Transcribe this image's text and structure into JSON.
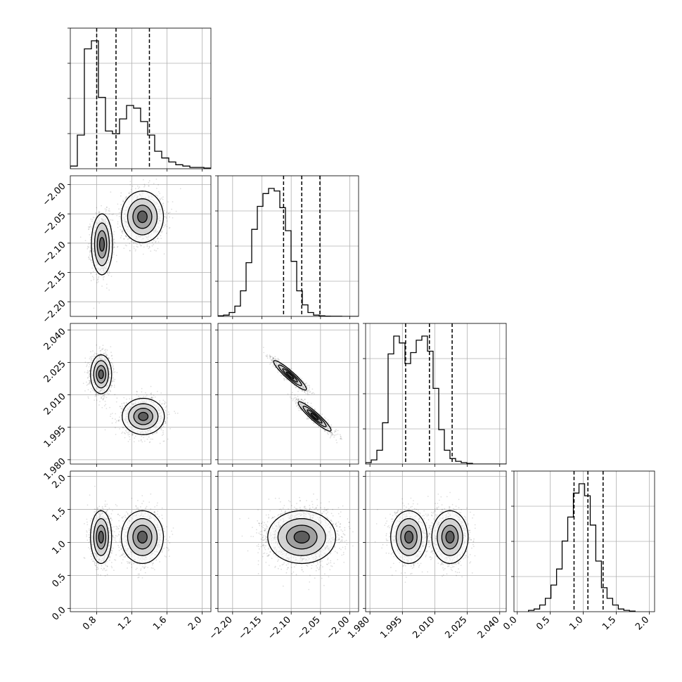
{
  "chart_data": {
    "type": "corner",
    "grid": true,
    "parameters": [
      {
        "range": [
          0.5,
          2.1
        ],
        "ticks": [
          0.8,
          1.2,
          1.6,
          2.0
        ],
        "tick_labels": [
          "0.8",
          "1.2",
          "1.6",
          "2.0"
        ],
        "quantiles": [
          0.8,
          1.02,
          1.4
        ],
        "hist_edges_start": 0.5,
        "hist_bin_width": 0.08,
        "hist_counts": [
          0.02,
          0.25,
          0.89,
          0.95,
          0.53,
          0.28,
          0.26,
          0.37,
          0.47,
          0.45,
          0.35,
          0.25,
          0.13,
          0.08,
          0.05,
          0.03,
          0.02,
          0.01,
          0.01,
          0.005
        ]
      },
      {
        "range": [
          -2.225,
          -1.985
        ],
        "ticks": [
          -2.2,
          -2.15,
          -2.1,
          -2.05,
          -2.0
        ],
        "tick_labels": [
          "−2.20",
          "−2.15",
          "−2.10",
          "−2.05",
          "−2.00"
        ],
        "quantiles": [
          -2.113,
          -2.082,
          -2.051
        ],
        "hist_edges_start": -2.225,
        "hist_bin_width": 0.0096,
        "hist_counts": [
          0.005,
          0.01,
          0.03,
          0.08,
          0.2,
          0.42,
          0.68,
          0.86,
          0.96,
          1.0,
          0.98,
          0.85,
          0.67,
          0.43,
          0.2,
          0.09,
          0.03,
          0.01,
          0.005,
          0.002,
          0.001,
          0.001,
          0.0,
          0.0,
          0.0
        ]
      },
      {
        "range": [
          1.978,
          2.043
        ],
        "ticks": [
          1.98,
          1.995,
          2.01,
          2.025,
          2.04
        ],
        "tick_labels": [
          "1.980",
          "1.995",
          "2.010",
          "2.025",
          "2.040"
        ],
        "quantiles": [
          1.9965,
          2.0075,
          2.018
        ],
        "hist_edges_start": 1.978,
        "hist_bin_width": 0.0026,
        "hist_counts": [
          0.01,
          0.03,
          0.1,
          0.3,
          0.8,
          0.93,
          0.88,
          0.73,
          0.81,
          0.9,
          0.93,
          0.82,
          0.55,
          0.25,
          0.1,
          0.04,
          0.02,
          0.01,
          0.005,
          0.0,
          0.0,
          0.0,
          0.0,
          0.0,
          0.0
        ]
      },
      {
        "range": [
          -0.05,
          2.08
        ],
        "ticks": [
          0.0,
          0.5,
          1.0,
          1.5,
          2.0
        ],
        "tick_labels": [
          "0.0",
          "0.5",
          "1.0",
          "1.5",
          "2.0"
        ],
        "quantiles": [
          0.86,
          1.07,
          1.3
        ],
        "hist_edges_start": 0.17,
        "hist_bin_width": 0.085,
        "hist_counts": [
          0.01,
          0.02,
          0.05,
          0.1,
          0.2,
          0.32,
          0.53,
          0.71,
          0.89,
          0.96,
          0.87,
          0.65,
          0.38,
          0.18,
          0.1,
          0.05,
          0.02,
          0.01,
          0.005
        ]
      }
    ],
    "pairs": [
      {
        "row": 1,
        "col": 0,
        "blobs": [
          {
            "mx": 0.86,
            "my": -2.102,
            "sx": 0.06,
            "sy": 0.026,
            "rho": 0.0,
            "w": 0.5
          },
          {
            "mx": 1.32,
            "my": -2.055,
            "sx": 0.12,
            "sy": 0.022,
            "rho": 0.0,
            "w": 0.5
          }
        ]
      },
      {
        "row": 2,
        "col": 0,
        "blobs": [
          {
            "mx": 0.85,
            "my": 2.0195,
            "sx": 0.06,
            "sy": 0.0045,
            "rho": 0.0,
            "w": 0.5
          },
          {
            "mx": 1.33,
            "my": 2.0,
            "sx": 0.12,
            "sy": 0.0042,
            "rho": 0.0,
            "w": 0.5
          }
        ]
      },
      {
        "row": 2,
        "col": 1,
        "blobs": [
          {
            "mx": -2.102,
            "my": 2.019,
            "sx": 0.014,
            "sy": 0.0034,
            "rho": -0.93,
            "w": 0.5
          },
          {
            "mx": -2.06,
            "my": 2.0,
            "sx": 0.014,
            "sy": 0.0034,
            "rho": -0.93,
            "w": 0.5
          }
        ]
      },
      {
        "row": 3,
        "col": 0,
        "blobs": [
          {
            "mx": 0.85,
            "my": 1.08,
            "sx": 0.06,
            "sy": 0.2,
            "rho": 0.0,
            "w": 0.5
          },
          {
            "mx": 1.32,
            "my": 1.08,
            "sx": 0.12,
            "sy": 0.2,
            "rho": 0.0,
            "w": 0.5
          }
        ]
      },
      {
        "row": 3,
        "col": 1,
        "blobs": [
          {
            "mx": -2.082,
            "my": 1.08,
            "sx": 0.029,
            "sy": 0.2,
            "rho": 0.0,
            "w": 1.0
          }
        ]
      },
      {
        "row": 3,
        "col": 2,
        "blobs": [
          {
            "mx": 1.998,
            "my": 1.08,
            "sx": 0.0042,
            "sy": 0.2,
            "rho": 0.0,
            "w": 0.5
          },
          {
            "mx": 2.017,
            "my": 1.08,
            "sx": 0.0042,
            "sy": 0.2,
            "rho": 0.0,
            "w": 0.5
          }
        ]
      }
    ]
  }
}
